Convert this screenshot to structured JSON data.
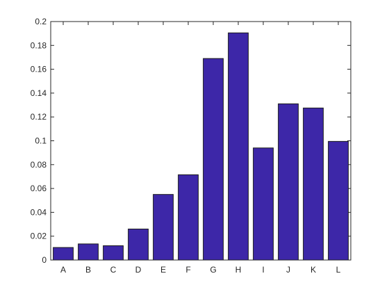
{
  "chart_data": {
    "type": "bar",
    "categories": [
      "A",
      "B",
      "C",
      "D",
      "E",
      "F",
      "G",
      "H",
      "I",
      "J",
      "K",
      "L"
    ],
    "values": [
      0.0105,
      0.0135,
      0.012,
      0.026,
      0.055,
      0.0715,
      0.169,
      0.1905,
      0.094,
      0.131,
      0.1275,
      0.0995
    ],
    "ylim": [
      0,
      0.2
    ],
    "yticks": [
      "0",
      "0.02",
      "0.04",
      "0.06",
      "0.08",
      "0.1",
      "0.12",
      "0.14",
      "0.16",
      "0.18",
      "0.2"
    ],
    "ytick_values": [
      0,
      0.02,
      0.04,
      0.06,
      0.08,
      0.1,
      0.12,
      0.14,
      0.16,
      0.18,
      0.2
    ],
    "title": "",
    "xlabel": "",
    "ylabel": "",
    "grid": false,
    "bar_color": "#3d27a8",
    "edge_color": "#1a1a1a"
  }
}
